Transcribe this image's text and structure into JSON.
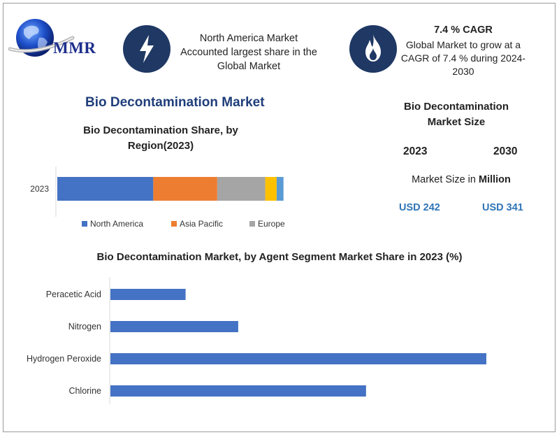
{
  "logo": {
    "text": "MMR",
    "icon": "globe-icon"
  },
  "info_left": {
    "icon": "lightning-icon",
    "lines": [
      "North America Market",
      "Accounted largest share in the",
      "Global Market"
    ]
  },
  "info_right": {
    "icon": "flame-icon",
    "title": "7.4 % CAGR",
    "lines": [
      "Global Market to grow at a",
      "CAGR of 7.4 % during 2024-",
      "2030"
    ]
  },
  "section_title": "Bio Decontamination Market",
  "market_size": {
    "title_lines": [
      "Bio Decontamination",
      "Market Size"
    ],
    "year_start": "2023",
    "year_end": "2030",
    "unit_prefix": "Market Size in ",
    "unit_bold": "Million",
    "value_start": "USD 242",
    "value_end": "USD 341"
  },
  "colors": {
    "north_america": "#4472c4",
    "asia_pacific": "#ed7d31",
    "europe": "#a5a5a5",
    "seg4": "#ffc000",
    "seg5": "#5b9bd5",
    "navy": "#1f3864",
    "usd": "#2e75b6"
  },
  "chart_data": [
    {
      "type": "bar",
      "orientation": "horizontal",
      "stacked": true,
      "title_lines": [
        "Bio Decontamination Share, by",
        "Region(2023)"
      ],
      "categories": [
        "2023"
      ],
      "series": [
        {
          "name": "North America",
          "values": [
            42
          ]
        },
        {
          "name": "Asia Pacific",
          "values": [
            28
          ]
        },
        {
          "name": "Europe",
          "values": [
            21
          ]
        },
        {
          "values": [
            5
          ]
        },
        {
          "values": [
            3
          ]
        }
      ],
      "legend": "bottom",
      "grid": false
    },
    {
      "type": "bar",
      "orientation": "horizontal",
      "title": "Bio Decontamination Market, by Agent Segment Market Share in 2023 (%)",
      "categories": [
        "Peracetic Acid",
        "Nitrogen",
        "Hydrogen Peroxide",
        "Chlorine"
      ],
      "values": [
        10,
        17,
        50,
        34
      ],
      "xlim": [
        0,
        50
      ],
      "grid": false
    }
  ]
}
